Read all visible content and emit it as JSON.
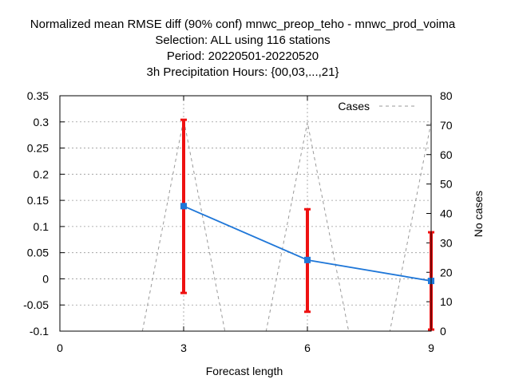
{
  "chart_data": {
    "type": "line",
    "title_lines": [
      "Normalized mean RMSE diff (90% conf) mnwc_preop_teho - mnwc_prod_voima",
      "Selection: ALL using   116 stations",
      "Period: 20220501-20220520",
      "3h Precipitation   Hours: {00,03,...,21}"
    ],
    "xlabel": "Forecast length",
    "ylabel": "",
    "y2label": "No cases",
    "xlim": [
      0,
      9
    ],
    "ylim": [
      -0.1,
      0.35
    ],
    "y2lim": [
      0,
      80
    ],
    "x_ticks": [
      "0",
      "3",
      "6",
      "9"
    ],
    "x_tick_values": [
      0,
      3,
      6,
      9
    ],
    "y_ticks": [
      "-0.1",
      "-0.05",
      "0",
      "0.05",
      "0.1",
      "0.15",
      "0.2",
      "0.25",
      "0.3",
      "0.35"
    ],
    "y_tick_values": [
      -0.1,
      -0.05,
      0,
      0.05,
      0.1,
      0.15,
      0.2,
      0.25,
      0.3,
      0.35
    ],
    "y2_ticks": [
      "0",
      "10",
      "20",
      "30",
      "40",
      "50",
      "60",
      "70",
      "80"
    ],
    "y2_tick_values": [
      0,
      10,
      20,
      30,
      40,
      50,
      60,
      70,
      80
    ],
    "grid": true,
    "legend_position": "top-right",
    "series": [
      {
        "name": "",
        "color": "#1f77d8",
        "axis": "left",
        "x": [
          3,
          6,
          9
        ],
        "values": [
          0.139,
          0.036,
          -0.004
        ],
        "ci_low": [
          -0.027,
          -0.063,
          -0.097
        ],
        "ci_high": [
          0.304,
          0.133,
          0.089
        ],
        "ci_color": "#ee1111"
      },
      {
        "name": "Cases",
        "color": "#999999",
        "axis": "right",
        "style": "dashed",
        "x": [
          0.3,
          2.0,
          3.0,
          4.0,
          5.0,
          6.0,
          7.0,
          8.0,
          9.0
        ],
        "values": [
          0,
          0,
          72,
          0,
          0,
          71,
          0,
          0,
          71
        ]
      }
    ]
  }
}
